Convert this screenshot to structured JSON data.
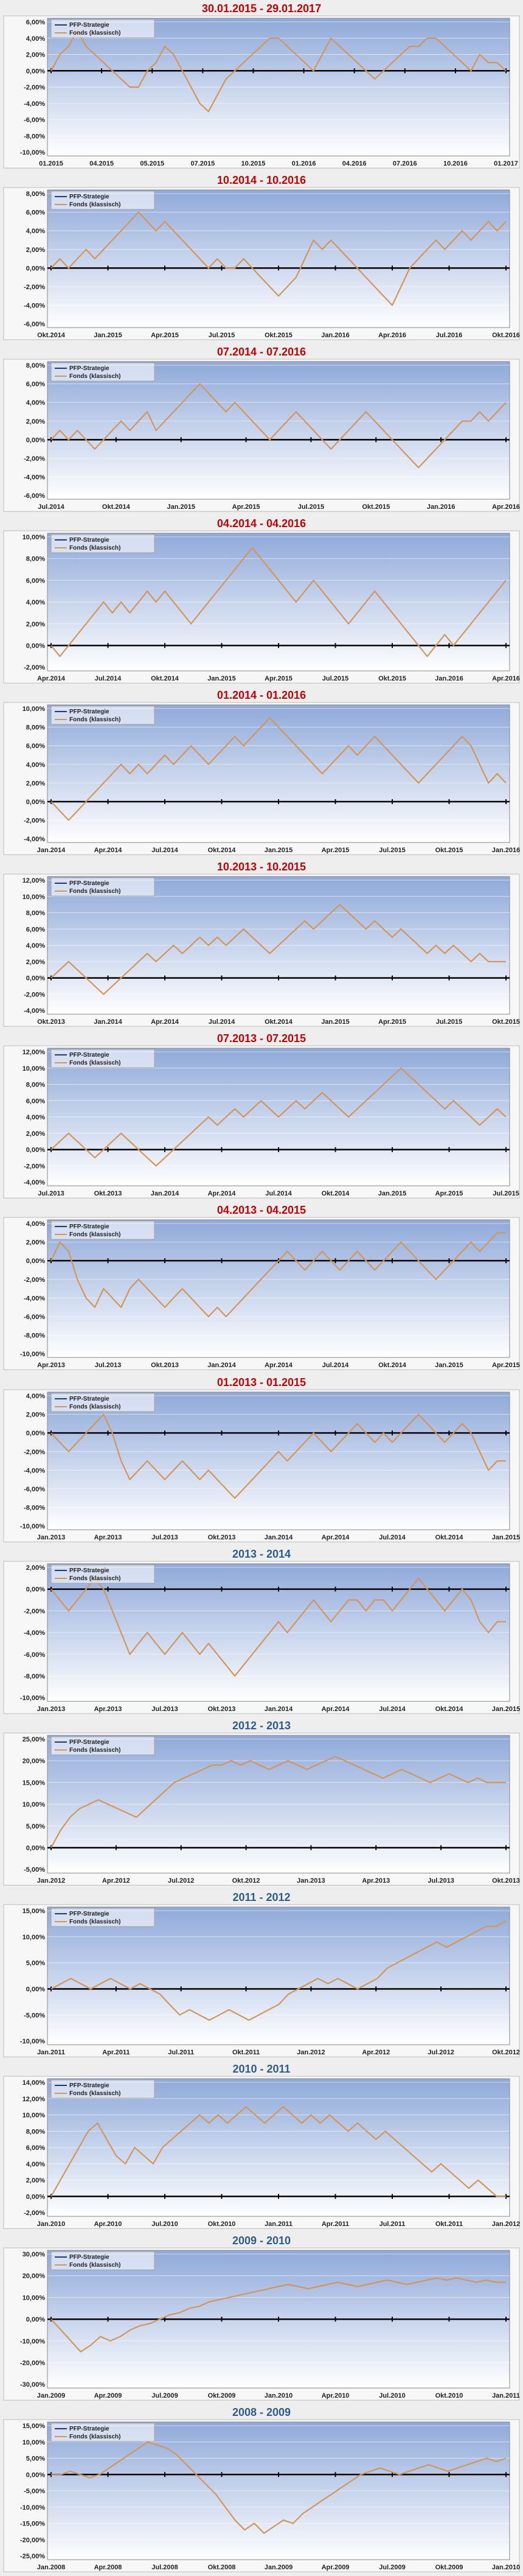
{
  "page": {
    "background": "#eeeeee",
    "plot_gradient_top": "#8fa9d9",
    "plot_gradient_bottom": "#ffffff"
  },
  "legend": {
    "series_a": "PFP-Strategie",
    "series_b": "Fonds (klassisch)",
    "color_a": "#1f3a6b",
    "color_b": "#d4955a"
  },
  "chart_data": [
    {
      "type": "line",
      "title": "30.01.2015 - 29.01.2017",
      "title_color": "#c00000",
      "ylim": [
        -10,
        6
      ],
      "yticks": [
        6,
        4,
        2,
        0,
        -2,
        -4,
        -6,
        -8,
        -10
      ],
      "ydecimals": 2,
      "xticks": [
        "01.2015",
        "04.2015",
        "05.2015",
        "07.2015",
        "10.2015",
        "01.2016",
        "04.2016",
        "07.2016",
        "10.2016",
        "01.2017"
      ],
      "points": [
        0,
        2,
        3,
        5,
        3,
        2,
        1,
        0,
        -1,
        -2,
        -2,
        0,
        1,
        3,
        2,
        0,
        -2,
        -4,
        -5,
        -3,
        -1,
        0,
        1,
        2,
        3,
        4,
        4,
        3,
        2,
        1,
        0,
        2,
        4,
        3,
        2,
        1,
        0,
        -1,
        0,
        1,
        2,
        3,
        3,
        4,
        4,
        3,
        2,
        1,
        0,
        2,
        1,
        1,
        0
      ],
      "series": [
        {
          "name": "PFP-Strategie"
        },
        {
          "name": "Fonds (klassisch)"
        }
      ]
    },
    {
      "type": "line",
      "title": "10.2014 - 10.2016",
      "title_color": "#c00000",
      "ylim": [
        -6,
        8
      ],
      "yticks": [
        8,
        6,
        4,
        2,
        0,
        -2,
        -4,
        -6
      ],
      "ydecimals": 2,
      "xticks": [
        "Okt.2014",
        "Jan.2015",
        "Apr.2015",
        "Jul.2015",
        "Okt.2015",
        "Jan.2016",
        "Apr.2016",
        "Jul.2016",
        "Okt.2016"
      ],
      "points": [
        0,
        1,
        0,
        1,
        2,
        1,
        2,
        3,
        4,
        5,
        6,
        5,
        4,
        5,
        4,
        3,
        2,
        1,
        0,
        1,
        0,
        0,
        1,
        0,
        -1,
        -2,
        -3,
        -2,
        -1,
        1,
        3,
        2,
        3,
        2,
        1,
        0,
        -1,
        -2,
        -3,
        -4,
        -2,
        0,
        1,
        2,
        3,
        2,
        3,
        4,
        3,
        4,
        5,
        4,
        5
      ],
      "series": [
        {
          "name": "PFP-Strategie"
        },
        {
          "name": "Fonds (klassisch)"
        }
      ]
    },
    {
      "type": "line",
      "title": "07.2014 - 07.2016",
      "title_color": "#c00000",
      "ylim": [
        -6,
        8
      ],
      "yticks": [
        8,
        6,
        4,
        2,
        0,
        -2,
        -4,
        -6
      ],
      "ydecimals": 2,
      "xticks": [
        "Jul.2014",
        "Okt.2014",
        "Jan.2015",
        "Apr.2015",
        "Jul.2015",
        "Okt.2015",
        "Jan.2016",
        "Apr.2016"
      ],
      "points": [
        0,
        1,
        0,
        1,
        0,
        -1,
        0,
        1,
        2,
        1,
        2,
        3,
        1,
        2,
        3,
        4,
        5,
        6,
        5,
        4,
        3,
        4,
        3,
        2,
        1,
        0,
        1,
        2,
        3,
        2,
        1,
        0,
        -1,
        0,
        1,
        2,
        3,
        2,
        1,
        0,
        -1,
        -2,
        -3,
        -2,
        -1,
        0,
        1,
        2,
        2,
        3,
        2,
        3,
        4
      ],
      "series": [
        {
          "name": "PFP-Strategie"
        },
        {
          "name": "Fonds (klassisch)"
        }
      ]
    },
    {
      "type": "line",
      "title": "04.2014 - 04.2016",
      "title_color": "#c00000",
      "ylim": [
        -2,
        10
      ],
      "yticks": [
        10,
        8,
        6,
        4,
        2,
        0,
        -2
      ],
      "ydecimals": 2,
      "xticks": [
        "Apr.2014",
        "Jul.2014",
        "Okt.2014",
        "Jan.2015",
        "Apr.2015",
        "Jul.2015",
        "Okt.2015",
        "Jan.2016",
        "Apr.2016"
      ],
      "points": [
        0,
        -1,
        0,
        1,
        2,
        3,
        4,
        3,
        4,
        3,
        4,
        5,
        4,
        5,
        4,
        3,
        2,
        3,
        4,
        5,
        6,
        7,
        8,
        9,
        8,
        7,
        6,
        5,
        4,
        5,
        6,
        5,
        4,
        3,
        2,
        3,
        4,
        5,
        4,
        3,
        2,
        1,
        0,
        -1,
        0,
        1,
        0,
        1,
        2,
        3,
        4,
        5,
        6
      ],
      "series": [
        {
          "name": "PFP-Strategie"
        },
        {
          "name": "Fonds (klassisch)"
        }
      ]
    },
    {
      "type": "line",
      "title": "01.2014 - 01.2016",
      "title_color": "#c00000",
      "ylim": [
        -4,
        10
      ],
      "yticks": [
        10,
        8,
        6,
        4,
        2,
        0,
        -2,
        -4
      ],
      "ydecimals": 2,
      "xticks": [
        "Jan.2014",
        "Apr.2014",
        "Jul.2014",
        "Okt.2014",
        "Jan.2015",
        "Apr.2015",
        "Jul.2015",
        "Okt.2015",
        "Jan.2016"
      ],
      "points": [
        0,
        -1,
        -2,
        -1,
        0,
        1,
        2,
        3,
        4,
        3,
        4,
        3,
        4,
        5,
        4,
        5,
        6,
        5,
        4,
        5,
        6,
        7,
        6,
        7,
        8,
        9,
        8,
        7,
        6,
        5,
        4,
        3,
        4,
        5,
        6,
        5,
        6,
        7,
        6,
        5,
        4,
        3,
        2,
        3,
        4,
        5,
        6,
        7,
        6,
        4,
        2,
        3,
        2
      ],
      "series": [
        {
          "name": "PFP-Strategie"
        },
        {
          "name": "Fonds (klassisch)"
        }
      ]
    },
    {
      "type": "line",
      "title": "10.2013 - 10.2015",
      "title_color": "#c00000",
      "ylim": [
        -4,
        12
      ],
      "yticks": [
        12,
        10,
        8,
        6,
        4,
        2,
        0,
        -2,
        -4
      ],
      "ydecimals": 2,
      "xticks": [
        "Okt.2013",
        "Jan.2014",
        "Apr.2014",
        "Jul.2014",
        "Okt.2014",
        "Jan.2015",
        "Apr.2015",
        "Jul.2015",
        "Okt.2015"
      ],
      "points": [
        0,
        1,
        2,
        1,
        0,
        -1,
        -2,
        -1,
        0,
        1,
        2,
        3,
        2,
        3,
        4,
        3,
        4,
        5,
        4,
        5,
        4,
        5,
        6,
        5,
        4,
        3,
        4,
        5,
        6,
        7,
        6,
        7,
        8,
        9,
        8,
        7,
        6,
        7,
        6,
        5,
        6,
        5,
        4,
        3,
        4,
        3,
        4,
        3,
        2,
        3,
        2,
        2,
        2
      ],
      "series": [
        {
          "name": "PFP-Strategie"
        },
        {
          "name": "Fonds (klassisch)"
        }
      ]
    },
    {
      "type": "line",
      "title": "07.2013 - 07.2015",
      "title_color": "#c00000",
      "ylim": [
        -4,
        12
      ],
      "yticks": [
        12,
        10,
        8,
        6,
        4,
        2,
        0,
        -2,
        -4
      ],
      "ydecimals": 2,
      "xticks": [
        "Jul.2013",
        "Okt.2013",
        "Jan.2014",
        "Apr.2014",
        "Jul.2014",
        "Okt.2014",
        "Jan.2015",
        "Apr.2015",
        "Jul.2015"
      ],
      "points": [
        0,
        1,
        2,
        1,
        0,
        -1,
        0,
        1,
        2,
        1,
        0,
        -1,
        -2,
        -1,
        0,
        1,
        2,
        3,
        4,
        3,
        4,
        5,
        4,
        5,
        6,
        5,
        4,
        5,
        6,
        5,
        6,
        7,
        6,
        5,
        4,
        5,
        6,
        7,
        8,
        9,
        10,
        9,
        8,
        7,
        6,
        5,
        6,
        5,
        4,
        3,
        4,
        5,
        4
      ],
      "series": [
        {
          "name": "PFP-Strategie"
        },
        {
          "name": "Fonds (klassisch)"
        }
      ]
    },
    {
      "type": "line",
      "title": "04.2013 - 04.2015",
      "title_color": "#c00000",
      "ylim": [
        -10,
        4
      ],
      "yticks": [
        4,
        2,
        0,
        -2,
        -4,
        -6,
        -8,
        -10
      ],
      "ydecimals": 2,
      "xticks": [
        "Apr.2013",
        "Jul.2013",
        "Okt.2013",
        "Jan.2014",
        "Apr.2014",
        "Jul.2014",
        "Okt.2014",
        "Jan.2015",
        "Apr.2015"
      ],
      "points": [
        0,
        2,
        1,
        -2,
        -4,
        -5,
        -3,
        -4,
        -5,
        -3,
        -2,
        -3,
        -4,
        -5,
        -4,
        -3,
        -4,
        -5,
        -6,
        -5,
        -6,
        -5,
        -4,
        -3,
        -2,
        -1,
        0,
        1,
        0,
        -1,
        0,
        1,
        0,
        -1,
        0,
        1,
        0,
        -1,
        0,
        1,
        2,
        1,
        0,
        -1,
        -2,
        -1,
        0,
        1,
        2,
        1,
        2,
        3,
        3
      ],
      "series": [
        {
          "name": "PFP-Strategie"
        },
        {
          "name": "Fonds (klassisch)"
        }
      ]
    },
    {
      "type": "line",
      "title": "01.2013 - 01.2015",
      "title_color": "#c00000",
      "ylim": [
        -10,
        4
      ],
      "yticks": [
        4,
        2,
        0,
        -2,
        -4,
        -6,
        -8,
        -10
      ],
      "ydecimals": 2,
      "xticks": [
        "Jan.2013",
        "Apr.2013",
        "Jul.2013",
        "Okt.2013",
        "Jan.2014",
        "Apr.2014",
        "Jul.2014",
        "Okt.2014",
        "Jan.2015"
      ],
      "points": [
        0,
        -1,
        -2,
        -1,
        0,
        1,
        2,
        0,
        -3,
        -5,
        -4,
        -3,
        -4,
        -5,
        -4,
        -3,
        -4,
        -5,
        -4,
        -5,
        -6,
        -7,
        -6,
        -5,
        -4,
        -3,
        -2,
        -3,
        -2,
        -1,
        0,
        -1,
        -2,
        -1,
        0,
        1,
        0,
        -1,
        0,
        -1,
        0,
        1,
        2,
        1,
        0,
        -1,
        0,
        1,
        0,
        -2,
        -4,
        -3,
        -3
      ],
      "series": [
        {
          "name": "PFP-Strategie"
        },
        {
          "name": "Fonds (klassisch)"
        }
      ]
    },
    {
      "type": "line",
      "title": "2013 - 2014",
      "title_color": "#2e5c8a",
      "ylim": [
        -10,
        2
      ],
      "yticks": [
        2,
        0,
        -2,
        -4,
        -6,
        -8,
        -10
      ],
      "ydecimals": 2,
      "xticks": [
        "Jan.2013",
        "Apr.2013",
        "Jul.2013",
        "Okt.2013",
        "Jan.2014",
        "Apr.2014",
        "Jul.2014",
        "Okt.2014",
        "Jan.2015"
      ],
      "points": [
        0,
        -1,
        -2,
        -1,
        0,
        1,
        0,
        -2,
        -4,
        -6,
        -5,
        -4,
        -5,
        -6,
        -5,
        -4,
        -5,
        -6,
        -5,
        -6,
        -7,
        -8,
        -7,
        -6,
        -5,
        -4,
        -3,
        -4,
        -3,
        -2,
        -1,
        -2,
        -3,
        -2,
        -1,
        -1,
        -2,
        -1,
        -1,
        -2,
        -1,
        0,
        1,
        0,
        -1,
        -2,
        -1,
        0,
        -1,
        -3,
        -4,
        -3,
        -3
      ],
      "series": [
        {
          "name": "PFP-Strategie"
        },
        {
          "name": "Fonds (klassisch)"
        }
      ]
    },
    {
      "type": "line",
      "title": "2012 - 2013",
      "title_color": "#2e5c8a",
      "ylim": [
        -5,
        25
      ],
      "yticks": [
        25,
        20,
        15,
        10,
        5,
        0,
        -5
      ],
      "ydecimals": 2,
      "xticks": [
        "Jan.2012",
        "Apr.2012",
        "Jul.2012",
        "Okt.2012",
        "Jan.2013",
        "Apr.2013",
        "Jul.2013",
        "Okt.2013"
      ],
      "points": [
        0,
        4,
        7,
        9,
        10,
        11,
        10,
        9,
        8,
        7,
        9,
        11,
        13,
        15,
        16,
        17,
        18,
        19,
        19,
        20,
        19,
        20,
        19,
        18,
        19,
        20,
        19,
        18,
        19,
        20,
        21,
        20,
        19,
        18,
        17,
        16,
        17,
        18,
        17,
        16,
        15,
        16,
        17,
        16,
        15,
        16,
        15,
        15,
        15
      ],
      "series": [
        {
          "name": "PFP-Strategie"
        },
        {
          "name": "Fonds (klassisch)"
        }
      ]
    },
    {
      "type": "line",
      "title": "2011 - 2012",
      "title_color": "#2e5c8a",
      "ylim": [
        -10,
        15
      ],
      "yticks": [
        15,
        10,
        5,
        0,
        -5,
        -10
      ],
      "ydecimals": 2,
      "xticks": [
        "Jan.2011",
        "Apr.2011",
        "Jul.2011",
        "Okt.2011",
        "Jan.2012",
        "Apr.2012",
        "Jul.2012",
        "Okt.2012"
      ],
      "points": [
        0,
        1,
        2,
        1,
        0,
        1,
        2,
        1,
        0,
        1,
        0,
        -1,
        -3,
        -5,
        -4,
        -5,
        -6,
        -5,
        -4,
        -5,
        -6,
        -5,
        -4,
        -3,
        -1,
        0,
        1,
        2,
        1,
        2,
        1,
        0,
        1,
        2,
        4,
        5,
        6,
        7,
        8,
        9,
        8,
        9,
        10,
        11,
        12,
        12,
        13
      ],
      "series": [
        {
          "name": "PFP-Strategie"
        },
        {
          "name": "Fonds (klassisch)"
        }
      ]
    },
    {
      "type": "line",
      "title": "2010 - 2011",
      "title_color": "#2e5c8a",
      "ylim": [
        -2,
        14
      ],
      "yticks": [
        14,
        12,
        10,
        8,
        6,
        4,
        2,
        0,
        -2
      ],
      "ydecimals": 2,
      "xticks": [
        "Jan.2010",
        "Apr.2010",
        "Jul.2010",
        "Okt.2010",
        "Jan.2011",
        "Apr.2011",
        "Jul.2011",
        "Okt.2011",
        "Jan.2012"
      ],
      "points": [
        0,
        2,
        4,
        6,
        8,
        9,
        7,
        5,
        4,
        6,
        5,
        4,
        6,
        7,
        8,
        9,
        10,
        9,
        10,
        9,
        10,
        11,
        10,
        9,
        10,
        11,
        10,
        9,
        10,
        9,
        10,
        9,
        8,
        9,
        8,
        7,
        8,
        7,
        6,
        5,
        4,
        3,
        4,
        3,
        2,
        1,
        2,
        1,
        0,
        0
      ],
      "series": [
        {
          "name": "PFP-Strategie"
        },
        {
          "name": "Fonds (klassisch)"
        }
      ]
    },
    {
      "type": "line",
      "title": "2009 - 2010",
      "title_color": "#2e5c8a",
      "ylim": [
        -30,
        30
      ],
      "yticks": [
        30,
        20,
        10,
        0,
        -10,
        -20,
        -30
      ],
      "ydecimals": 2,
      "xticks": [
        "Jan.2009",
        "Apr.2009",
        "Jul.2009",
        "Okt.2009",
        "Jan.2010",
        "Apr.2010",
        "Jul.2010",
        "Okt.2010",
        "Jan.2011"
      ],
      "points": [
        0,
        -5,
        -10,
        -15,
        -12,
        -8,
        -10,
        -8,
        -5,
        -3,
        -2,
        0,
        2,
        3,
        5,
        6,
        8,
        9,
        10,
        11,
        12,
        13,
        14,
        15,
        16,
        15,
        14,
        15,
        16,
        17,
        16,
        15,
        16,
        17,
        18,
        17,
        16,
        17,
        18,
        19,
        18,
        19,
        18,
        17,
        18,
        17,
        17
      ],
      "series": [
        {
          "name": "PFP-Strategie"
        },
        {
          "name": "Fonds (klassisch)"
        }
      ]
    },
    {
      "type": "line",
      "title": "2008 - 2009",
      "title_color": "#2e5c8a",
      "ylim": [
        -25,
        15
      ],
      "yticks": [
        15,
        10,
        5,
        0,
        -5,
        -10,
        -15,
        -20,
        -25
      ],
      "ydecimals": 2,
      "xticks": [
        "Jan.2008",
        "Apr.2008",
        "Jul.2008",
        "Okt.2008",
        "Jan.2009",
        "Apr.2009",
        "Jul.2009",
        "Okt.2009",
        "Jan.2010"
      ],
      "points": [
        0,
        0,
        1,
        0,
        -1,
        0,
        2,
        4,
        6,
        8,
        10,
        9,
        8,
        6,
        3,
        0,
        -3,
        -6,
        -10,
        -14,
        -17,
        -15,
        -18,
        -16,
        -14,
        -15,
        -12,
        -10,
        -8,
        -6,
        -4,
        -2,
        0,
        1,
        2,
        1,
        0,
        1,
        2,
        3,
        2,
        1,
        2,
        3,
        4,
        5,
        4,
        5
      ],
      "series": [
        {
          "name": "PFP-Strategie"
        },
        {
          "name": "Fonds (klassisch)"
        }
      ]
    }
  ]
}
